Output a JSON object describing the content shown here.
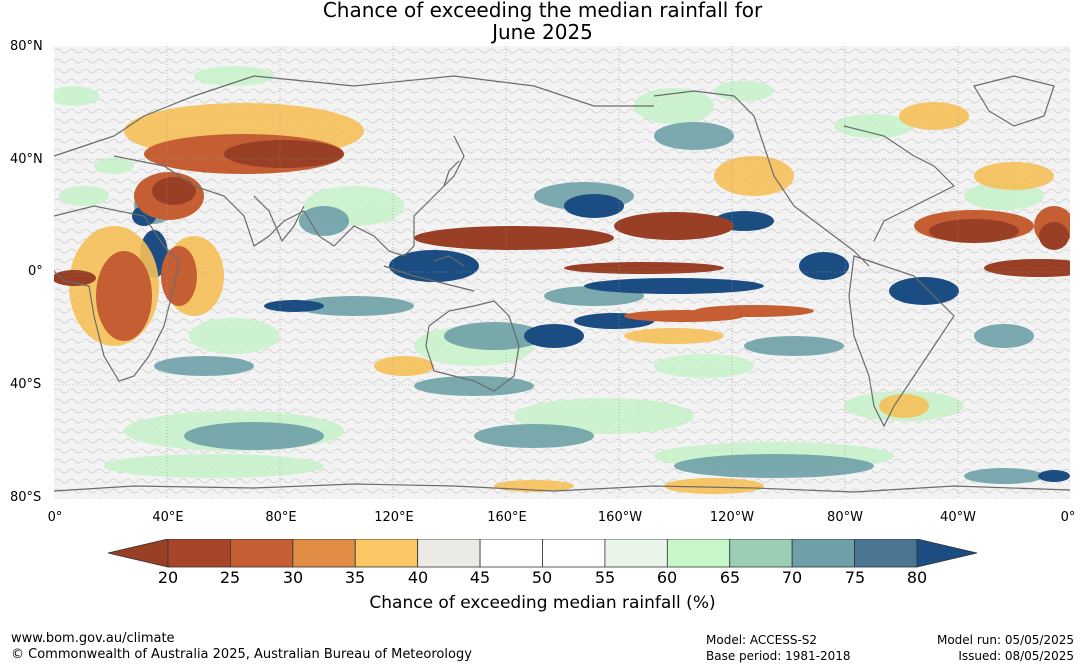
{
  "title_line1": "Chance of exceeding the median rainfall for",
  "title_line2": "June 2025",
  "lat_labels": [
    "80°N",
    "40°N",
    "0°",
    "40°S",
    "80°S"
  ],
  "lon_labels": [
    "0°",
    "40°E",
    "80°E",
    "120°E",
    "160°E",
    "160°W",
    "120°W",
    "80°W",
    "40°W",
    "0°"
  ],
  "colorbar": {
    "ticks": [
      "20",
      "25",
      "30",
      "35",
      "40",
      "45",
      "50",
      "55",
      "60",
      "65",
      "70",
      "75",
      "80"
    ],
    "colors": [
      "#a7452b",
      "#c55f33",
      "#e08c45",
      "#fbc764",
      "#ebeae6",
      "#ffffff",
      "#ffffff",
      "#e9f5e8",
      "#c7f7c9",
      "#9ccdb5",
      "#6ea1a7",
      "#4a7694"
    ],
    "low_arrow_color": "#983f25",
    "high_arrow_color": "#1b4d83",
    "label": "Chance of exceeding median rainfall (%)"
  },
  "footer": {
    "url": "www.bom.gov.au/climate",
    "copyright": "© Commonwealth of Australia 2025, Australian Bureau of Meteorology",
    "model": "Model: ACCESS-S2",
    "base_period": "Base period: 1981-2018",
    "model_run": "Model run: 05/05/2025",
    "issued": "Issued: 08/05/2025"
  }
}
